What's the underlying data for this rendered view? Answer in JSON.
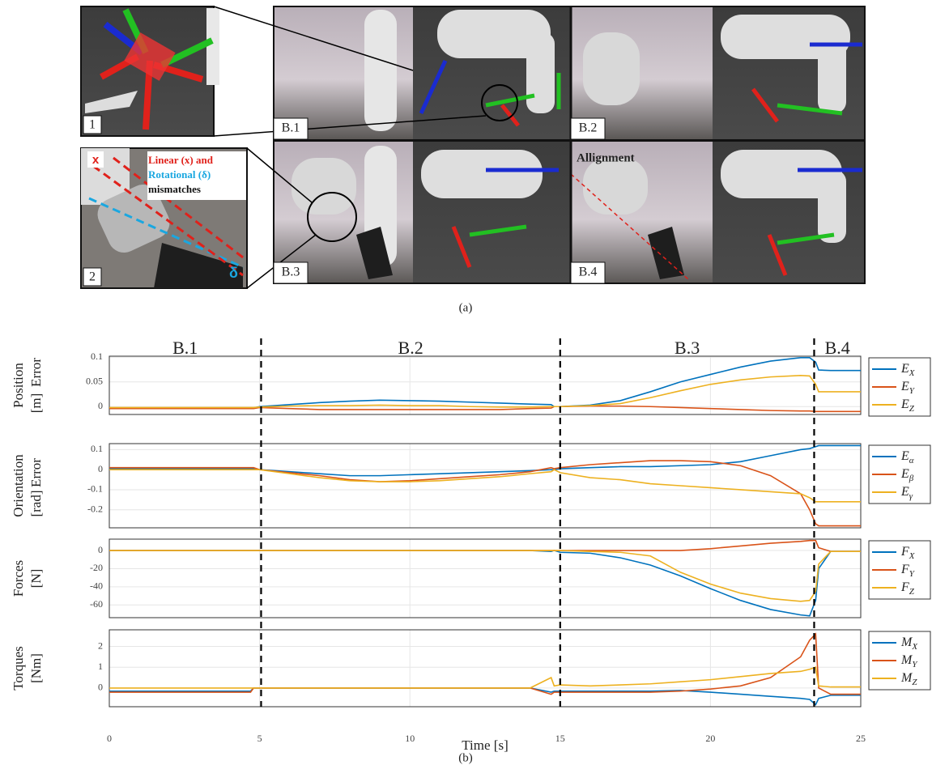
{
  "photos": {
    "inset_1_label": "1",
    "inset_2_label": "2",
    "inset_2_x": "x",
    "inset_2_note": [
      "Linear (x) and",
      "Rotational (δ)",
      "mismatches"
    ],
    "inset_2_delta": "δ",
    "panels": [
      "B.1",
      "B.2",
      "B.3",
      "B.4"
    ],
    "alignment_note": "Allignment"
  },
  "caption_a": "(a)",
  "phases": {
    "labels": [
      "B.1",
      "B.2",
      "B.3",
      "B.4"
    ],
    "boundaries": [
      5.05,
      15,
      23.45
    ]
  },
  "chart_data": [
    {
      "type": "line",
      "ylabel": [
        "Position",
        "Error",
        "[m]"
      ],
      "x": [
        0,
        2,
        4,
        4.7,
        4.8,
        5,
        6,
        7,
        8,
        9,
        10,
        11,
        12,
        13,
        14,
        14.7,
        14.8,
        15,
        16,
        17,
        18,
        19,
        20,
        21,
        22,
        23,
        23.3,
        23.5,
        23.6,
        24,
        25
      ],
      "xlim": [
        0,
        25
      ],
      "xticks": [
        0,
        5,
        10,
        15,
        20,
        25
      ],
      "ylim": [
        -0.016,
        0.102
      ],
      "yticks": [
        0,
        0.05,
        0.1
      ],
      "grid": true,
      "series": [
        {
          "name": "E",
          "subscript": "X",
          "color": "#0072BD",
          "values": [
            -0.003,
            -0.003,
            -0.003,
            -0.003,
            -0.003,
            0,
            0.004,
            0.008,
            0.011,
            0.013,
            0.012,
            0.011,
            0.009,
            0.007,
            0.005,
            0.004,
            0,
            0,
            0.003,
            0.012,
            0.03,
            0.05,
            0.065,
            0.08,
            0.092,
            0.099,
            0.099,
            0.09,
            0.074,
            0.073,
            0.073
          ]
        },
        {
          "name": "E",
          "subscript": "Y",
          "color": "#D95319",
          "values": [
            -0.004,
            -0.004,
            -0.004,
            -0.004,
            -0.004,
            -0.002,
            -0.004,
            -0.006,
            -0.006,
            -0.006,
            -0.006,
            -0.006,
            -0.006,
            -0.006,
            -0.004,
            -0.003,
            0,
            0,
            0.001,
            0.001,
            0,
            -0.002,
            -0.004,
            -0.006,
            -0.008,
            -0.009,
            -0.009,
            -0.01,
            -0.01,
            -0.01,
            -0.01
          ]
        },
        {
          "name": "E",
          "subscript": "Z",
          "color": "#EDB120",
          "values": [
            -0.002,
            -0.002,
            -0.002,
            -0.002,
            -0.002,
            -0.001,
            0.001,
            0.002,
            0.002,
            0.003,
            0.002,
            0.002,
            0,
            -0.001,
            -0.001,
            0,
            0,
            0,
            0.002,
            0.006,
            0.018,
            0.032,
            0.045,
            0.054,
            0.06,
            0.063,
            0.062,
            0.045,
            0.03,
            0.03,
            0.03
          ]
        }
      ]
    },
    {
      "type": "line",
      "ylabel": [
        "Orientation",
        "Error",
        "[rad]"
      ],
      "x": [
        0,
        2,
        4,
        4.7,
        4.8,
        5,
        6,
        7,
        8,
        9,
        10,
        11,
        12,
        13,
        14,
        14.7,
        14.8,
        15,
        16,
        17,
        18,
        19,
        20,
        21,
        22,
        23,
        23.3,
        23.5,
        23.6,
        24,
        25
      ],
      "xlim": [
        0,
        25
      ],
      "xticks": [
        0,
        5,
        10,
        15,
        20,
        25
      ],
      "ylim": [
        -0.29,
        0.13
      ],
      "yticks": [
        -0.2,
        -0.1,
        0,
        0.1
      ],
      "grid": true,
      "series": [
        {
          "name": "E",
          "subscript": "α",
          "color": "#0072BD",
          "values": [
            0.005,
            0.005,
            0.005,
            0.005,
            0.005,
            0,
            -0.01,
            -0.02,
            -0.03,
            -0.03,
            -0.025,
            -0.02,
            -0.015,
            -0.01,
            -0.005,
            0,
            0,
            0.005,
            0.01,
            0.015,
            0.015,
            0.02,
            0.025,
            0.04,
            0.07,
            0.1,
            0.105,
            0.115,
            0.12,
            0.12,
            0.12
          ]
        },
        {
          "name": "E",
          "subscript": "β",
          "color": "#D95319",
          "values": [
            0.01,
            0.01,
            0.01,
            0.01,
            0.01,
            0,
            -0.015,
            -0.03,
            -0.05,
            -0.06,
            -0.055,
            -0.045,
            -0.035,
            -0.025,
            -0.01,
            0.01,
            0.005,
            0.01,
            0.025,
            0.035,
            0.045,
            0.045,
            0.04,
            0.02,
            -0.03,
            -0.12,
            -0.2,
            -0.27,
            -0.28,
            -0.28,
            -0.28
          ]
        },
        {
          "name": "E",
          "subscript": "γ",
          "color": "#EDB120",
          "values": [
            0,
            0,
            0,
            0,
            0,
            0,
            -0.02,
            -0.04,
            -0.055,
            -0.06,
            -0.06,
            -0.055,
            -0.045,
            -0.035,
            -0.02,
            -0.01,
            0,
            -0.015,
            -0.04,
            -0.05,
            -0.07,
            -0.08,
            -0.09,
            -0.1,
            -0.11,
            -0.12,
            -0.14,
            -0.16,
            -0.16,
            -0.16,
            -0.16
          ]
        }
      ]
    },
    {
      "type": "line",
      "ylabel": [
        "Forces",
        "[N]"
      ],
      "x": [
        0,
        2,
        4,
        4.7,
        4.8,
        5,
        6,
        7,
        8,
        9,
        10,
        11,
        12,
        13,
        14,
        14.7,
        14.8,
        15,
        16,
        17,
        18,
        19,
        20,
        21,
        22,
        23,
        23.3,
        23.5,
        23.6,
        24,
        25
      ],
      "xlim": [
        0,
        25
      ],
      "xticks": [
        0,
        5,
        10,
        15,
        20,
        25
      ],
      "ylim": [
        -74,
        12.5
      ],
      "yticks": [
        -60,
        -40,
        -20,
        0
      ],
      "grid": true,
      "series": [
        {
          "name": "F",
          "subscript": "X",
          "color": "#0072BD",
          "values": [
            0,
            0,
            0,
            0,
            0,
            0,
            0,
            0,
            0,
            0,
            0,
            0,
            0,
            0,
            0,
            -1,
            0,
            -2,
            -3,
            -8,
            -16,
            -28,
            -42,
            -55,
            -65,
            -71,
            -72,
            -55,
            -20,
            -1,
            -1
          ]
        },
        {
          "name": "F",
          "subscript": "Y",
          "color": "#D95319",
          "values": [
            0,
            0,
            0,
            0,
            0,
            0,
            0,
            0,
            0,
            0,
            0,
            0,
            0,
            0,
            0,
            0,
            0,
            0,
            0,
            0,
            0,
            0,
            2,
            5,
            8,
            10,
            11,
            11,
            3,
            -1,
            -1
          ]
        },
        {
          "name": "F",
          "subscript": "Z",
          "color": "#EDB120",
          "values": [
            0,
            0,
            0,
            0,
            0,
            0,
            0,
            0,
            0,
            0,
            0,
            0,
            0,
            0,
            0,
            0,
            0,
            0,
            -1,
            -2,
            -6,
            -24,
            -37,
            -47,
            -53,
            -56,
            -55,
            -45,
            -15,
            -1,
            -1
          ]
        }
      ]
    },
    {
      "type": "line",
      "ylabel": [
        "Torques",
        "[Nm]"
      ],
      "x": [
        0,
        2,
        4,
        4.7,
        4.8,
        5,
        6,
        7,
        8,
        9,
        10,
        11,
        12,
        13,
        14,
        14.7,
        14.8,
        15,
        16,
        17,
        18,
        19,
        20,
        21,
        22,
        23,
        23.3,
        23.5,
        23.6,
        24,
        25
      ],
      "xlim": [
        0,
        25
      ],
      "xticks": [
        0,
        5,
        10,
        15,
        20,
        25
      ],
      "ylim": [
        -0.9,
        2.8
      ],
      "yticks": [
        0,
        1,
        2
      ],
      "grid": true,
      "series": [
        {
          "name": "M",
          "subscript": "X",
          "color": "#0072BD",
          "values": [
            -0.15,
            -0.15,
            -0.15,
            -0.15,
            0,
            0,
            0,
            0,
            0,
            0,
            0,
            0,
            0,
            0,
            0,
            -0.2,
            -0.15,
            -0.15,
            -0.15,
            -0.15,
            -0.15,
            -0.12,
            -0.2,
            -0.3,
            -0.4,
            -0.5,
            -0.55,
            -0.8,
            -0.5,
            -0.35,
            -0.35
          ]
        },
        {
          "name": "M",
          "subscript": "Y",
          "color": "#D95319",
          "values": [
            -0.2,
            -0.2,
            -0.2,
            -0.2,
            0,
            0,
            0,
            0,
            0,
            0,
            0,
            0,
            0,
            0,
            0,
            -0.3,
            -0.2,
            -0.2,
            -0.2,
            -0.2,
            -0.2,
            -0.15,
            -0.05,
            0.1,
            0.5,
            1.5,
            2.3,
            2.6,
            0,
            -0.3,
            -0.3
          ]
        },
        {
          "name": "M",
          "subscript": "Z",
          "color": "#EDB120",
          "values": [
            0,
            0,
            0,
            0,
            0,
            0,
            0,
            0,
            0,
            0,
            0,
            0,
            0,
            0,
            0,
            0.5,
            0.1,
            0.15,
            0.1,
            0.15,
            0.2,
            0.3,
            0.4,
            0.55,
            0.7,
            0.8,
            0.9,
            1.0,
            0.1,
            0.05,
            0.05
          ]
        }
      ]
    }
  ],
  "x_label": "Time [s]",
  "caption_b": "(b)"
}
